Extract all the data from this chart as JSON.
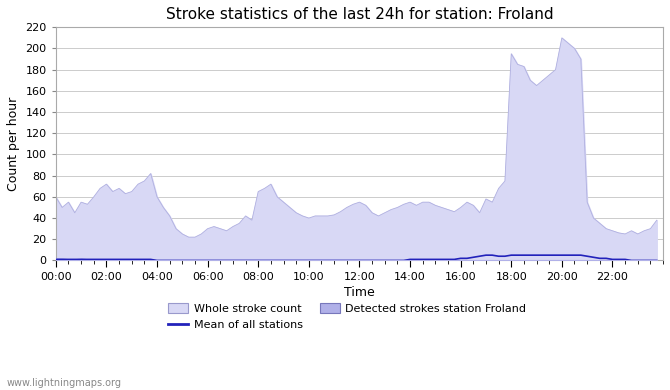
{
  "title": "Stroke statistics of the last 24h for station: Froland",
  "xlabel": "Time",
  "ylabel": "Count per hour",
  "watermark": "www.lightningmaps.org",
  "ylim": [
    0,
    220
  ],
  "yticks": [
    0,
    20,
    40,
    60,
    80,
    100,
    120,
    140,
    160,
    180,
    200,
    220
  ],
  "xtick_labels": [
    "00:00",
    "02:00",
    "04:00",
    "06:00",
    "08:00",
    "10:00",
    "12:00",
    "14:00",
    "16:00",
    "18:00",
    "20:00",
    "22:00"
  ],
  "legend_entries": [
    "Whole stroke count",
    "Detected strokes station Froland",
    "Mean of all stations"
  ],
  "whole_stroke_color": "#d8d8f5",
  "detected_stroke_color": "#b0b0e8",
  "mean_line_color": "#2222bb",
  "background_color": "#ffffff",
  "grid_color": "#cccccc",
  "hours": [
    0,
    0.25,
    0.5,
    0.75,
    1,
    1.25,
    1.5,
    1.75,
    2,
    2.25,
    2.5,
    2.75,
    3,
    3.25,
    3.5,
    3.75,
    4,
    4.25,
    4.5,
    4.75,
    5,
    5.25,
    5.5,
    5.75,
    6,
    6.25,
    6.5,
    6.75,
    7,
    7.25,
    7.5,
    7.75,
    8,
    8.25,
    8.5,
    8.75,
    9,
    9.25,
    9.5,
    9.75,
    10,
    10.25,
    10.5,
    10.75,
    11,
    11.25,
    11.5,
    11.75,
    12,
    12.25,
    12.5,
    12.75,
    13,
    13.25,
    13.5,
    13.75,
    14,
    14.25,
    14.5,
    14.75,
    15,
    15.25,
    15.5,
    15.75,
    16,
    16.25,
    16.5,
    16.75,
    17,
    17.25,
    17.5,
    17.75,
    18,
    18.25,
    18.5,
    18.75,
    19,
    19.25,
    19.5,
    19.75,
    20,
    20.25,
    20.5,
    20.75,
    21,
    21.25,
    21.5,
    21.75,
    22,
    22.25,
    22.5,
    22.75,
    23,
    23.25,
    23.5,
    23.75
  ],
  "whole_strokes": [
    60,
    50,
    55,
    45,
    55,
    53,
    60,
    68,
    72,
    65,
    68,
    63,
    65,
    72,
    75,
    82,
    60,
    50,
    42,
    30,
    25,
    22,
    22,
    25,
    30,
    32,
    30,
    28,
    32,
    35,
    42,
    38,
    65,
    68,
    72,
    60,
    55,
    50,
    45,
    42,
    40,
    42,
    42,
    42,
    43,
    46,
    50,
    53,
    55,
    52,
    45,
    42,
    45,
    48,
    50,
    53,
    55,
    52,
    55,
    55,
    52,
    50,
    48,
    46,
    50,
    55,
    52,
    45,
    58,
    55,
    68,
    75,
    195,
    185,
    183,
    170,
    165,
    170,
    175,
    180,
    210,
    205,
    200,
    190,
    55,
    40,
    35,
    30,
    28,
    26,
    25,
    28,
    25,
    28,
    30,
    38
  ],
  "detected_strokes": [
    2,
    2,
    1,
    1,
    2,
    1,
    1,
    1,
    1,
    1,
    1,
    1,
    1,
    1,
    1,
    1,
    0,
    0,
    0,
    0,
    0,
    0,
    0,
    0,
    0,
    0,
    0,
    0,
    0,
    0,
    0,
    0,
    0,
    0,
    0,
    0,
    0,
    0,
    0,
    0,
    0,
    0,
    0,
    0,
    0,
    0,
    0,
    0,
    0,
    0,
    0,
    0,
    0,
    0,
    0,
    0,
    0,
    0,
    0,
    0,
    0,
    0,
    0,
    0,
    0,
    0,
    0,
    0,
    0,
    0,
    0,
    0,
    0,
    0,
    0,
    0,
    0,
    0,
    0,
    0,
    0,
    0,
    0,
    0,
    0,
    0,
    0,
    0,
    0,
    0,
    0,
    0,
    0,
    0,
    0,
    0
  ],
  "mean_values": [
    1,
    1,
    1,
    1,
    1,
    1,
    1,
    1,
    1,
    1,
    1,
    1,
    1,
    1,
    1,
    1,
    0,
    0,
    0,
    0,
    0,
    0,
    0,
    0,
    0,
    0,
    0,
    0,
    0,
    0,
    0,
    0,
    0,
    0,
    0,
    0,
    0,
    0,
    0,
    0,
    0,
    0,
    0,
    0,
    0,
    0,
    0,
    0,
    0,
    0,
    0,
    0,
    0,
    0,
    0,
    0,
    1,
    1,
    1,
    1,
    1,
    1,
    1,
    1,
    2,
    2,
    3,
    4,
    5,
    5,
    4,
    4,
    5,
    5,
    5,
    5,
    5,
    5,
    5,
    5,
    5,
    5,
    5,
    5,
    4,
    3,
    2,
    2,
    1,
    1,
    1,
    0,
    0,
    0,
    0,
    0
  ]
}
